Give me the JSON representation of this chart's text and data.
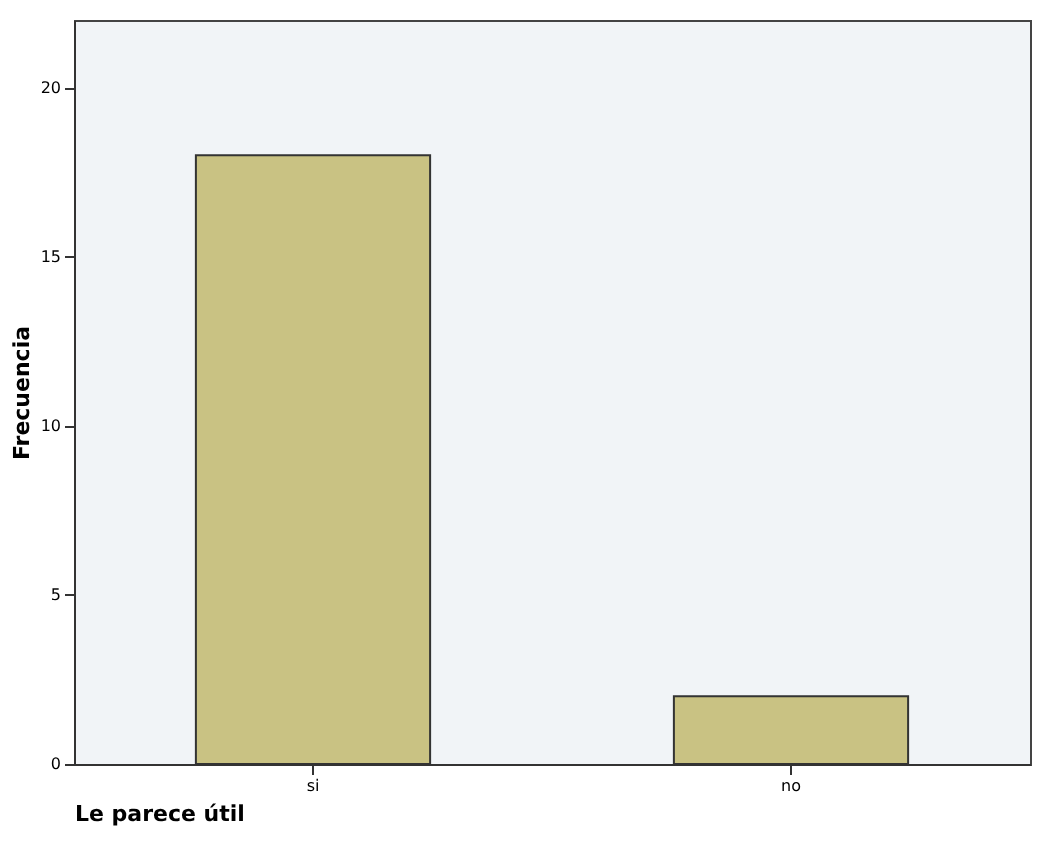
{
  "chart_data": {
    "type": "bar",
    "xlabel": "Le parece útil",
    "ylabel": "Frecuencia",
    "categories": [
      "si",
      "no"
    ],
    "values": [
      18,
      2
    ],
    "color": "#c9c283",
    "ylim": [
      0,
      22
    ],
    "yticks": [
      0,
      5,
      10,
      15,
      20
    ],
    "grid": false
  }
}
